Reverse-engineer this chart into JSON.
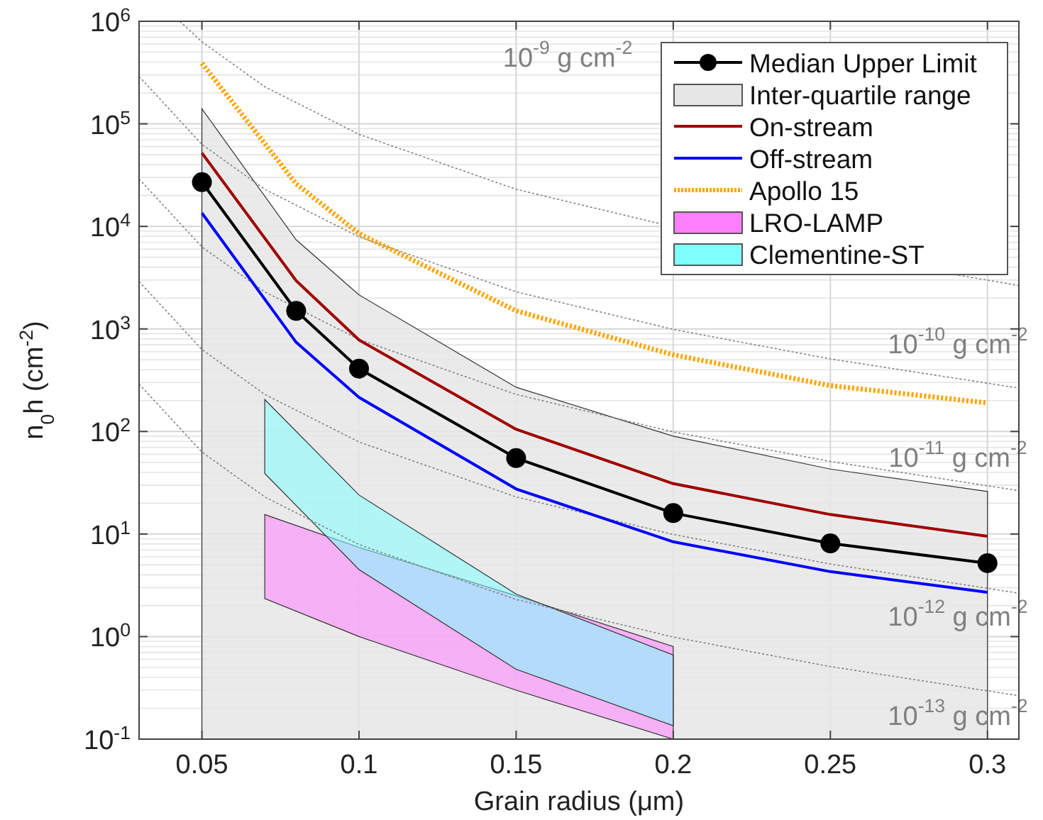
{
  "chart_data": {
    "type": "line",
    "xlabel": "Grain radius (μm)",
    "ylabel": "n$_{0}$h (cm$^{-2}$)",
    "log": "y",
    "grid": true,
    "legend": "top right",
    "xlim": [
      0.03,
      0.31
    ],
    "xticks": [
      0.05,
      0.1,
      0.15,
      0.2,
      0.25,
      0.3
    ],
    "ylim": [
      0.1,
      1000000
    ],
    "yticks": [
      {
        "value": 0.1,
        "label": "10$^{-1}$"
      },
      {
        "value": 1,
        "label": "10$^{0}$"
      },
      {
        "value": 10,
        "label": "10$^{1}$"
      },
      {
        "value": 100,
        "label": "10$^{2}$"
      },
      {
        "value": 1000,
        "label": "10$^{3}$"
      },
      {
        "value": 10000,
        "label": "10$^{4}$"
      },
      {
        "value": 100000,
        "label": "10$^{5}$"
      },
      {
        "value": 1000000,
        "label": "10$^{6}$"
      }
    ],
    "series": [
      {
        "name": "Median Upper Limit",
        "color": "#000000",
        "marker": "circle",
        "line_style": "solid",
        "x": [
          0.05,
          0.08,
          0.1,
          0.15,
          0.2,
          0.25,
          0.3
        ],
        "values": [
          27000,
          1500,
          410,
          55,
          16,
          8.1,
          5.2
        ]
      },
      {
        "name": "Inter-quartile range",
        "type": "area",
        "color": "#e6e6e6",
        "x": [
          0.05,
          0.08,
          0.1,
          0.15,
          0.2,
          0.25,
          0.3
        ],
        "values": [
          null,
          null,
          null,
          null,
          null,
          null,
          null
        ],
        "upper": [
          140000,
          7400,
          2150,
          270,
          90,
          43,
          26
        ],
        "lower": [
          0.1,
          0.1,
          0.1,
          0.1,
          0.1,
          0.1,
          0.1
        ]
      },
      {
        "name": "On-stream",
        "color": "#a00000",
        "line_style": "solid",
        "x": [
          0.05,
          0.08,
          0.1,
          0.15,
          0.2,
          0.25,
          0.3
        ],
        "values": [
          52000,
          2950,
          780,
          105,
          31,
          15.5,
          9.5
        ]
      },
      {
        "name": "Off-stream",
        "color": "#0000ff",
        "line_style": "solid",
        "x": [
          0.05,
          0.08,
          0.1,
          0.15,
          0.2,
          0.25,
          0.3
        ],
        "values": [
          13500,
          740,
          215,
          27.5,
          8.4,
          4.3,
          2.7
        ]
      },
      {
        "name": "Apollo 15",
        "color": "#ffa500",
        "line_style": "dotted",
        "x": [
          0.05,
          0.08,
          0.1,
          0.15,
          0.2,
          0.25,
          0.3
        ],
        "values": [
          390000,
          26000,
          8500,
          1500,
          560,
          280,
          190
        ]
      },
      {
        "name": "LRO-LAMP",
        "type": "area",
        "color": "#ff80ff",
        "x": [
          0.07,
          0.1,
          0.15,
          0.2
        ],
        "values": [
          null,
          null,
          null,
          null
        ],
        "upper": [
          15.5,
          7.4,
          2.5,
          0.8
        ],
        "lower": [
          2.35,
          1.0,
          0.3,
          0.1
        ]
      },
      {
        "name": "Clementine-ST",
        "type": "area",
        "color": "#80ffff",
        "x": [
          0.07,
          0.1,
          0.15,
          0.2
        ],
        "values": [
          null,
          null,
          null,
          null
        ],
        "upper": [
          205,
          24,
          2.6,
          0.66
        ],
        "lower": [
          39,
          4.5,
          0.48,
          0.135
        ]
      },
      {
        "color": "#808080",
        "line_style": "dotted",
        "x": [
          0.043,
          0.05,
          0.07,
          0.1,
          0.15,
          0.2,
          0.25,
          0.31
        ],
        "values": [
          1000000,
          630000,
          230000,
          79000,
          23000,
          9900,
          null,
          2650
        ]
      },
      {
        "color": "#808080",
        "line_style": "dotted",
        "x": [
          0.03,
          0.05,
          0.07,
          0.1,
          0.15,
          0.2,
          0.25,
          0.31
        ],
        "values": [
          290000,
          63000,
          23000,
          7900,
          2300,
          990,
          510,
          265
        ]
      },
      {
        "color": "#808080",
        "line_style": "dotted",
        "x": [
          0.03,
          0.05,
          0.07,
          0.1,
          0.15,
          0.2,
          0.25,
          0.31
        ],
        "values": [
          29000,
          6300,
          2300,
          790,
          230,
          99,
          51,
          26.5
        ]
      },
      {
        "color": "#808080",
        "line_style": "dotted",
        "x": [
          0.03,
          0.05,
          0.07,
          0.1,
          0.15,
          0.2,
          0.25,
          0.31
        ],
        "values": [
          2900,
          630,
          230,
          79,
          23,
          9.9,
          5.1,
          2.65
        ]
      },
      {
        "color": "#808080",
        "line_style": "dotted",
        "x": [
          0.03,
          0.05,
          0.07,
          0.1,
          0.15,
          0.2,
          0.25,
          0.31
        ],
        "values": [
          290,
          63,
          23,
          7.9,
          2.3,
          0.99,
          0.51,
          0.265
        ]
      }
    ],
    "annotations": [
      "10$^{-9}$ g cm$^{-2}$",
      "10$^{-10}$ g cm$^{-2}$",
      "10$^{-11}$ g cm$^{-2}$",
      "10$^{-12}$ g cm$^{-2}$",
      "10$^{-13}$ g cm$^{-2}$"
    ]
  }
}
